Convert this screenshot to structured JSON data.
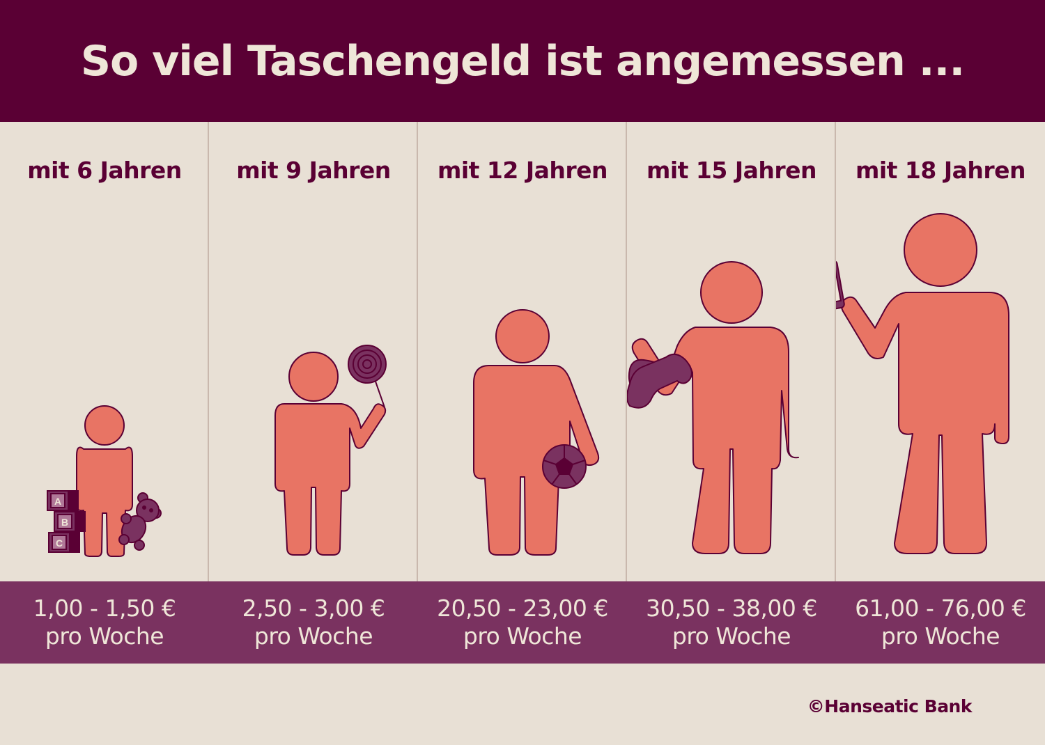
{
  "header": {
    "title": "So viel Taschengeld ist angemessen ..."
  },
  "colors": {
    "header_bg": "#5a0034",
    "background": "#e8e0d5",
    "price_band": "#7a3260",
    "figure_fill": "#e87464",
    "accent": "#7a3260",
    "text_light": "#efe6d8"
  },
  "columns": [
    {
      "age": "mit 6 Jahren",
      "amount": "1,00 - 1,50 €",
      "unit": "pro Woche",
      "item_icon": "abc-blocks-and-teddy-icon"
    },
    {
      "age": "mit 9 Jahren",
      "amount": "2,50 - 3,00 €",
      "unit": "pro Woche",
      "item_icon": "lollipop-icon"
    },
    {
      "age": "mit 12 Jahren",
      "amount": "20,50 - 23,00 €",
      "unit": "pro Woche",
      "item_icon": "soccer-ball-icon"
    },
    {
      "age": "mit 15 Jahren",
      "amount": "30,50 - 38,00 €",
      "unit": "pro Woche",
      "item_icon": "gamepad-icon"
    },
    {
      "age": "mit 18 Jahren",
      "amount": "61,00 - 76,00 €",
      "unit": "pro Woche",
      "item_icon": "smartphone-icon"
    }
  ],
  "blocks": [
    "A",
    "B",
    "C"
  ],
  "footer": {
    "copyright": "©Hanseatic Bank"
  }
}
